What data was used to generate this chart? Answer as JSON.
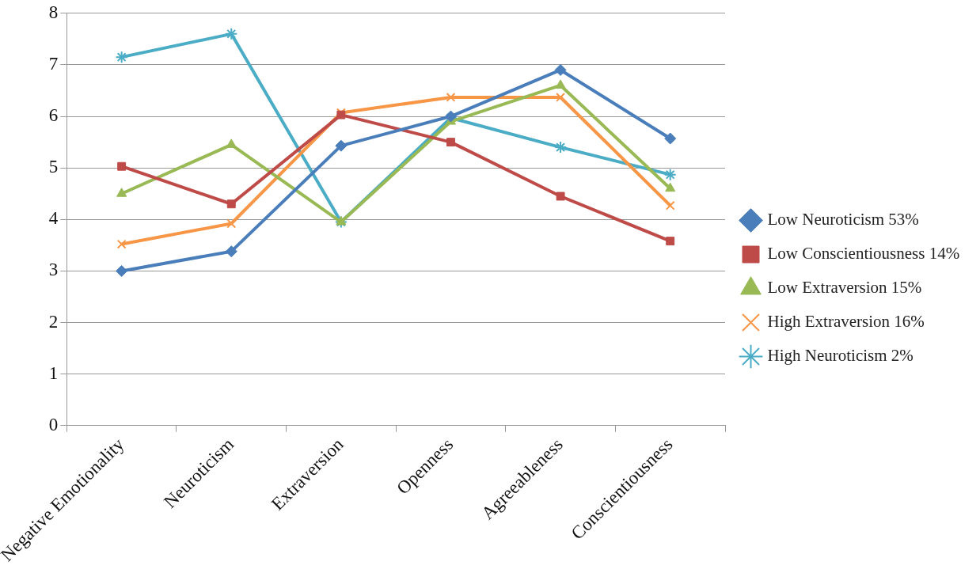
{
  "chart_data": {
    "type": "line",
    "categories": [
      "Negative Emotionality",
      "Neuroticism",
      "Extraversion",
      "Openness",
      "Agreeableness",
      "Conscientiousness"
    ],
    "ylim": [
      0,
      8
    ],
    "yticks": [
      0,
      1,
      2,
      3,
      4,
      5,
      6,
      7,
      8
    ],
    "grid": "y",
    "legend": "right",
    "line_style": "solid",
    "series": [
      {
        "name": "Low Neuroticism 53%",
        "color": "#4a7ebb",
        "marker": "diamond",
        "values": [
          3.0,
          3.38,
          5.43,
          6.0,
          6.9,
          5.57
        ]
      },
      {
        "name": "Low Conscientiousness 14%",
        "color": "#be4b48",
        "marker": "square",
        "values": [
          5.03,
          4.3,
          6.03,
          5.5,
          4.45,
          3.58
        ]
      },
      {
        "name": "Low Extraversion 15%",
        "color": "#98b954",
        "marker": "triangle",
        "values": [
          4.5,
          5.45,
          3.95,
          5.9,
          6.6,
          4.6
        ]
      },
      {
        "name": "High Extraversion 16%",
        "color": "#f79646",
        "marker": "cross",
        "values": [
          3.52,
          3.92,
          6.07,
          6.37,
          6.37,
          4.27
        ]
      },
      {
        "name": "High Neuroticism 2%",
        "color": "#4bacc6",
        "marker": "cross",
        "values": [
          7.15,
          7.6,
          3.95,
          5.97,
          5.4,
          4.87
        ]
      }
    ]
  }
}
